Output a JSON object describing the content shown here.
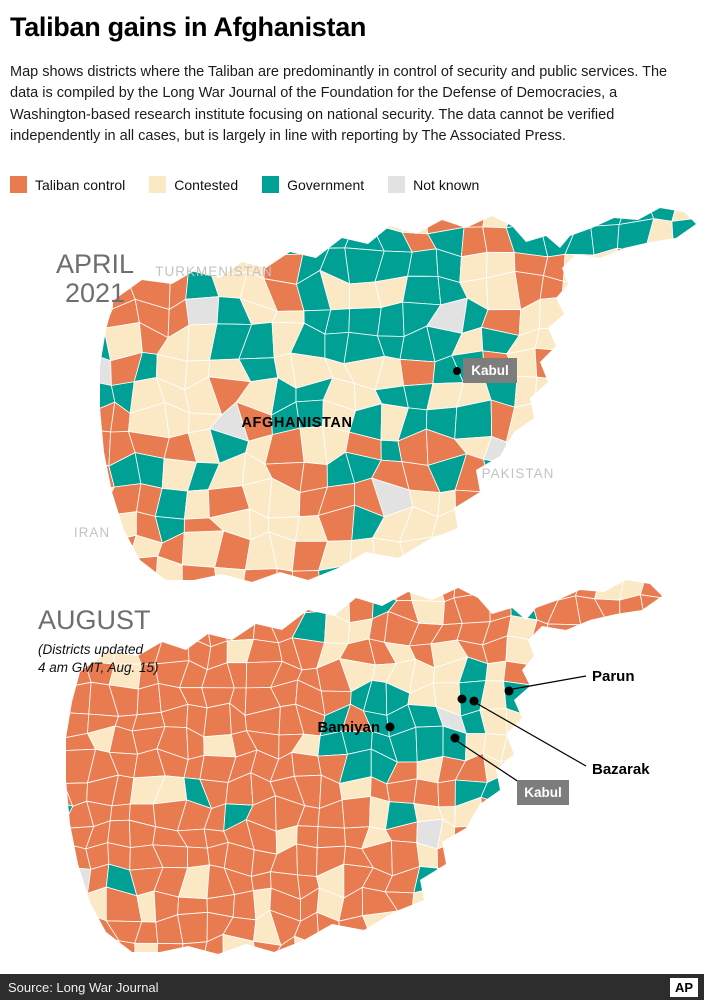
{
  "header": {
    "title": "Taliban gains in Afghanistan",
    "description": "Map shows districts where the Taliban are predominantly in control of security and public services. The data is compiled by the Long War Journal of the Foundation for the Defense of Democracies, a Washington-based research institute focusing on national security. The data cannot be verified independently in all cases, but is largely in line with reporting by The Associated Press."
  },
  "legend": {
    "items": [
      {
        "key": "taliban",
        "label": "Taliban control",
        "color": "#e87c50"
      },
      {
        "key": "contested",
        "label": "Contested",
        "color": "#fbe9c6"
      },
      {
        "key": "government",
        "label": "Government",
        "color": "#00a094"
      },
      {
        "key": "unknown",
        "label": "Not known",
        "color": "#e2e2e2"
      }
    ]
  },
  "maps": {
    "april": {
      "period_line1": "APRIL",
      "period_line2": "2021",
      "country_labels": {
        "turkmenistan": "TURKMENISTAN",
        "afghanistan": "AFGHANISTAN",
        "pakistan": "PAKISTAN",
        "iran": "IRAN"
      },
      "kabul_label": "Kabul",
      "render": {
        "nx": 24,
        "ny": 15,
        "zones": [
          {
            "color": "government",
            "u": 0.46,
            "v": 0.3,
            "rx": 0.2,
            "ry": 0.24,
            "p": 0.75
          },
          {
            "color": "government",
            "u": 0.88,
            "v": 0.07,
            "rx": 0.16,
            "ry": 0.09,
            "p": 0.85
          },
          {
            "color": "government",
            "u": 0.63,
            "v": 0.5,
            "rx": 0.08,
            "ry": 0.12,
            "p": 0.55
          },
          {
            "color": "government",
            "u": 0.21,
            "v": 0.72,
            "rx": 0.06,
            "ry": 0.08,
            "p": 0.5
          },
          {
            "color": "government",
            "u": 0.07,
            "v": 0.35,
            "rx": 0.05,
            "ry": 0.08,
            "p": 0.5
          },
          {
            "color": "unknown",
            "u": 0.24,
            "v": 0.32,
            "rx": 0.035,
            "ry": 0.05,
            "p": 0.85
          },
          {
            "color": "unknown",
            "u": 0.27,
            "v": 0.55,
            "rx": 0.03,
            "ry": 0.045,
            "p": 0.85
          },
          {
            "color": "taliban",
            "u": 0.13,
            "v": 0.27,
            "rx": 0.08,
            "ry": 0.11,
            "p": 0.62
          },
          {
            "color": "taliban",
            "u": 0.11,
            "v": 0.61,
            "rx": 0.06,
            "ry": 0.09,
            "p": 0.6
          },
          {
            "color": "taliban",
            "u": 0.31,
            "v": 0.92,
            "rx": 0.13,
            "ry": 0.1,
            "p": 0.65
          },
          {
            "color": "taliban",
            "u": 0.39,
            "v": 0.78,
            "rx": 0.07,
            "ry": 0.1,
            "p": 0.5
          },
          {
            "color": "taliban",
            "u": 0.45,
            "v": 0.07,
            "rx": 0.14,
            "ry": 0.07,
            "p": 0.45
          },
          {
            "color": "taliban",
            "u": 0.58,
            "v": 0.69,
            "rx": 0.09,
            "ry": 0.12,
            "p": 0.5
          },
          {
            "color": "taliban",
            "u": 0.68,
            "v": 0.3,
            "rx": 0.07,
            "ry": 0.08,
            "p": 0.45
          }
        ],
        "base": {
          "contested": 0.6,
          "taliban": 0.2,
          "government": 0.17,
          "unknown": 0.03
        }
      }
    },
    "august": {
      "period_line1": "AUGUST",
      "note_line1": "(Districts updated",
      "note_line2": "4 am GMT, Aug. 15)",
      "city_labels": {
        "parun": "Parun",
        "bazarak": "Bazarak",
        "bamiyan": "Bamiyan"
      },
      "kabul_label": "Kabul",
      "render": {
        "nx": 28,
        "ny": 17,
        "zones": [
          {
            "color": "government",
            "u": 0.55,
            "v": 0.38,
            "rx": 0.095,
            "ry": 0.14,
            "p": 0.88
          },
          {
            "color": "government",
            "u": 0.685,
            "v": 0.31,
            "rx": 0.04,
            "ry": 0.055,
            "p": 0.75
          },
          {
            "color": "government",
            "u": 0.72,
            "v": 0.56,
            "rx": 0.035,
            "ry": 0.05,
            "p": 0.6
          },
          {
            "color": "contested",
            "u": 0.8,
            "v": 0.42,
            "rx": 0.13,
            "ry": 0.24,
            "p": 0.55
          },
          {
            "color": "taliban",
            "u": 0.22,
            "v": 0.52,
            "rx": 0.34,
            "ry": 0.55,
            "p": 0.9
          },
          {
            "color": "taliban",
            "u": 0.45,
            "v": 0.85,
            "rx": 0.28,
            "ry": 0.18,
            "p": 0.84
          },
          {
            "color": "taliban",
            "u": 0.5,
            "v": 0.08,
            "rx": 0.28,
            "ry": 0.11,
            "p": 0.6
          },
          {
            "color": "taliban",
            "u": 0.87,
            "v": 0.1,
            "rx": 0.14,
            "ry": 0.09,
            "p": 0.75
          }
        ],
        "base": {
          "taliban": 0.42,
          "contested": 0.44,
          "government": 0.09,
          "unknown": 0.05
        }
      }
    }
  },
  "footer": {
    "source": "Source: Long War Journal",
    "logo": "AP"
  }
}
